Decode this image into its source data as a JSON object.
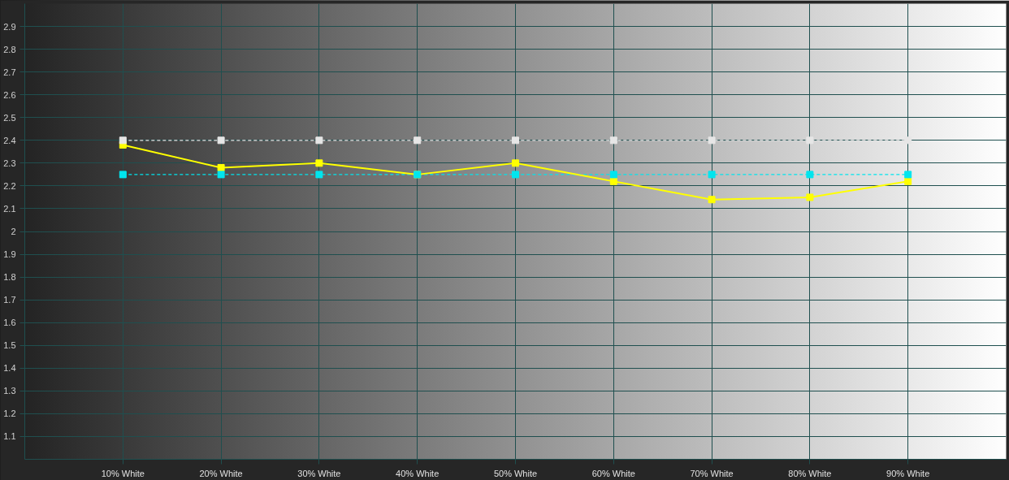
{
  "chart_data": {
    "type": "line",
    "x": [
      10,
      20,
      30,
      40,
      50,
      60,
      70,
      80,
      90
    ],
    "series": [
      {
        "color": "#e6e6e6",
        "line_style": "dashed",
        "values": [
          2.4,
          2.4,
          2.4,
          2.4,
          2.4,
          2.4,
          2.4,
          2.4,
          2.4
        ]
      },
      {
        "color": "#00e5ee",
        "line_style": "dashed",
        "values": [
          2.25,
          2.25,
          2.25,
          2.25,
          2.25,
          2.25,
          2.25,
          2.25,
          2.25
        ]
      },
      {
        "color": "#ffff00",
        "line_style": "solid",
        "values": [
          2.38,
          2.28,
          2.3,
          2.25,
          2.3,
          2.22,
          2.14,
          2.15,
          2.22
        ]
      }
    ],
    "marker": "square",
    "xlim": [
      0,
      100
    ],
    "xticks": [
      {
        "value": 10,
        "label": "10% White"
      },
      {
        "value": 20,
        "label": "20% White"
      },
      {
        "value": 30,
        "label": "30% White"
      },
      {
        "value": 40,
        "label": "40% White"
      },
      {
        "value": 50,
        "label": "50% White"
      },
      {
        "value": 60,
        "label": "60% White"
      },
      {
        "value": 70,
        "label": "70% White"
      },
      {
        "value": 80,
        "label": "80% White"
      },
      {
        "value": 90,
        "label": "90% White"
      }
    ],
    "ylim": [
      1.0,
      3.0
    ],
    "yticks": [
      1.1,
      1.2,
      1.3,
      1.4,
      1.5,
      1.6,
      1.7,
      1.8,
      1.9,
      {
        "value": 2.0,
        "label": "2"
      },
      2.1,
      2.2,
      2.3,
      2.4,
      2.5,
      2.6,
      2.7,
      2.8,
      2.9
    ],
    "grid": true
  }
}
